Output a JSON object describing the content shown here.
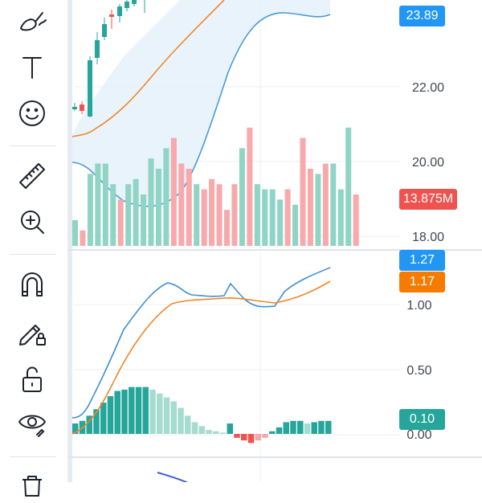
{
  "toolbar": {
    "tools": [
      {
        "name": "brush-icon"
      },
      {
        "name": "text-icon"
      },
      {
        "name": "emoji-icon"
      },
      {
        "name": "ruler-icon"
      },
      {
        "name": "zoom-in-icon"
      },
      {
        "name": "magnet-icon"
      },
      {
        "name": "lock-drawings-icon"
      },
      {
        "name": "lock-icon"
      },
      {
        "name": "eye-icon"
      },
      {
        "name": "trash-icon"
      }
    ]
  },
  "price_pane": {
    "axis_ticks": [
      "22.00",
      "20.00",
      "18.00"
    ],
    "last_price_badge": "23.89",
    "volume_badge": "13.875M"
  },
  "macd_pane": {
    "axis_ticks": [
      "1.00",
      "0.50",
      "0.00"
    ],
    "macd_badge": "1.27",
    "signal_badge": "1.17",
    "histogram_badge": "0.10"
  },
  "colors": {
    "up": "#26a69a",
    "down": "#ef5350",
    "up_volume": "#8fd4c4",
    "down_volume": "#f7a9ab",
    "band": "#4a9ad8",
    "ma": "#f0862a",
    "macd_line": "#3c8fd6",
    "signal_line": "#f0862a",
    "blue_badge": "#2196f3",
    "orange_badge": "#f57c00",
    "red_badge": "#ef5350",
    "green_badge": "#26a69a"
  },
  "chart_data": [
    {
      "type": "bar",
      "name": "volume",
      "values": [
        5,
        3,
        14,
        16,
        16,
        12,
        9,
        12,
        13,
        10,
        17,
        15,
        19,
        21,
        16,
        15,
        12,
        11,
        13,
        12,
        7,
        12,
        19,
        23,
        12,
        11,
        11,
        9,
        11,
        8,
        21,
        15,
        14,
        16,
        16,
        11,
        23,
        10
      ]
    },
    {
      "type": "bar",
      "name": "macd-histogram",
      "values": [
        0.08,
        0.1,
        0.14,
        0.19,
        0.24,
        0.29,
        0.33,
        0.34,
        0.36,
        0.36,
        0.36,
        0.34,
        0.31,
        0.28,
        0.25,
        0.2,
        0.14,
        0.09,
        0.06,
        0.03,
        0.02,
        0.01,
        0.08,
        -0.03,
        -0.05,
        -0.07,
        -0.05,
        -0.03,
        0.02,
        0.05,
        0.09,
        0.1,
        0.1,
        0.08,
        0.09,
        0.1,
        0.1
      ],
      "colors": [
        "up",
        "up",
        "up",
        "up",
        "up",
        "up",
        "up",
        "up",
        "up",
        "up",
        "up",
        "upl",
        "upl",
        "upl",
        "upl",
        "upl",
        "upl",
        "upl",
        "upl",
        "upl",
        "upl",
        "upl",
        "up",
        "down",
        "down",
        "down",
        "downl",
        "downl",
        "up",
        "up",
        "up",
        "up",
        "up",
        "upl",
        "up",
        "up",
        "up"
      ]
    }
  ]
}
